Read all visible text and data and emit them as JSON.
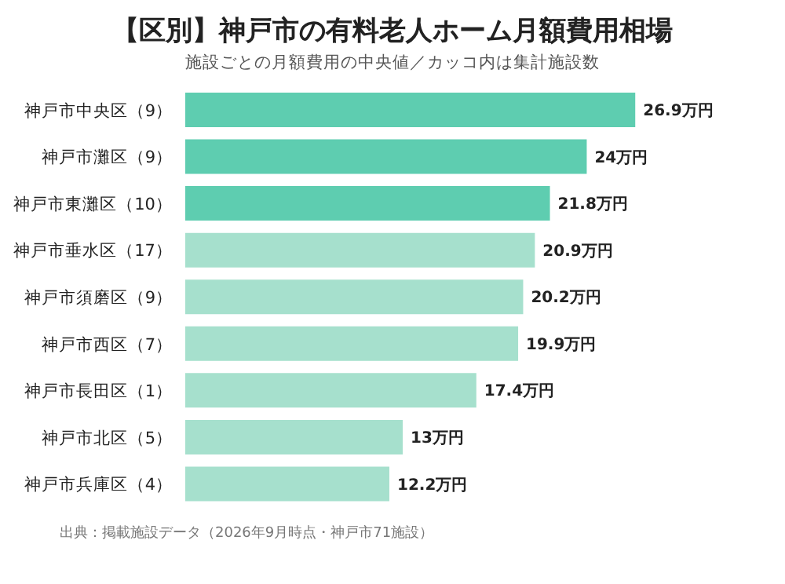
{
  "chart_data": {
    "type": "bar",
    "orientation": "horizontal",
    "title": "【区別】神戸市の有料老人ホーム月額費用相場",
    "subtitle": "施設ごとの月額費用の中央値／カッコ内は集計施設数",
    "categories": [
      "神戸市中央区（9）",
      "神戸市灘区（9）",
      "神戸市東灘区（10）",
      "神戸市垂水区（17）",
      "神戸市須磨区（9）",
      "神戸市西区（7）",
      "神戸市長田区（1）",
      "神戸市北区（5）",
      "神戸市兵庫区（4）"
    ],
    "values": [
      26.9,
      24,
      21.8,
      20.9,
      20.2,
      19.9,
      17.4,
      13,
      12.2
    ],
    "value_labels": [
      "26.9万円",
      "24万円",
      "21.8万円",
      "20.9万円",
      "20.2万円",
      "19.9万円",
      "17.4万円",
      "13万円",
      "12.2万円"
    ],
    "colors": [
      "#5ecdb0",
      "#5ecdb0",
      "#5ecdb0",
      "#a6e0cd",
      "#a6e0cd",
      "#a6e0cd",
      "#a6e0cd",
      "#a6e0cd",
      "#a6e0cd"
    ],
    "annotations": [
      "出典：掲載施設データ（2026年9月時点・神戸市71施設）"
    ]
  }
}
